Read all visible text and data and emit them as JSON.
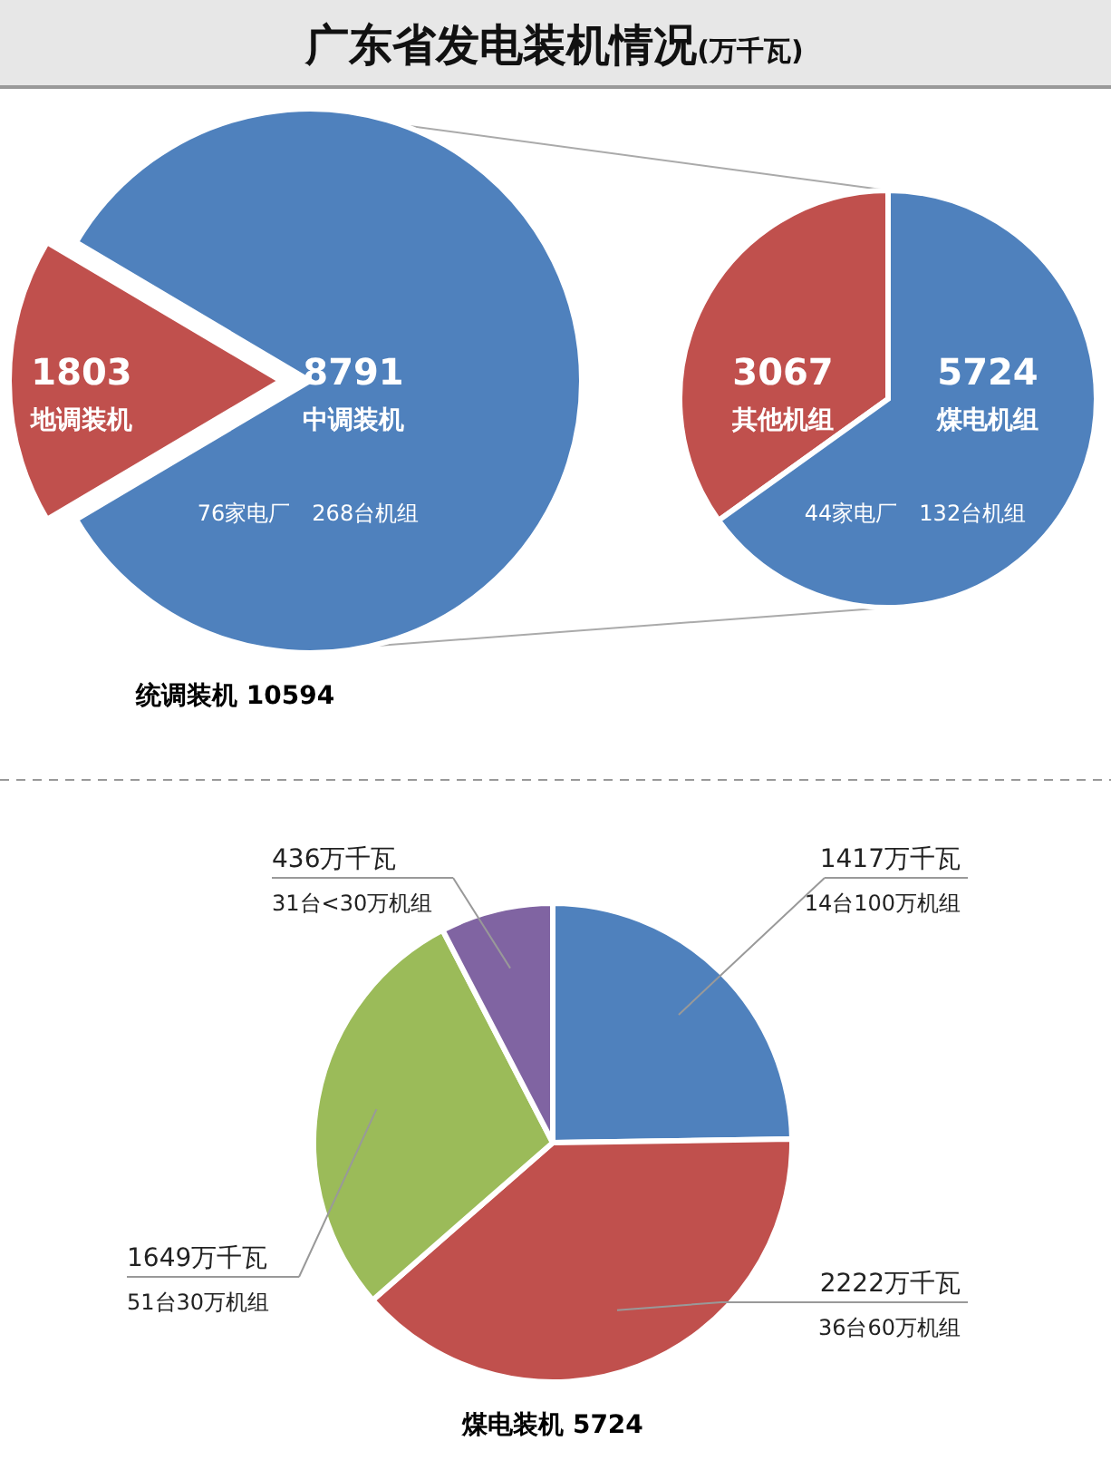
{
  "chart_data": [
    {
      "type": "pie",
      "title": "广东省发电装机情况",
      "subtitle": "(万千瓦)",
      "categories": [
        "地调装机",
        "中调装机"
      ],
      "values": [
        1803,
        8791
      ],
      "colors": [
        "#c0504d",
        "#4f81bd"
      ],
      "data_labels": true,
      "annotations": [
        "76家电厂　268台机组",
        "统调装机  10594"
      ]
    },
    {
      "type": "pie",
      "categories": [
        "其他机组",
        "煤电机组"
      ],
      "values": [
        3067,
        5724
      ],
      "colors": [
        "#c0504d",
        "#4f81bd"
      ],
      "data_labels": true,
      "annotations": [
        "44家电厂　132台机组"
      ]
    },
    {
      "type": "pie",
      "categories": [
        "14台100万机组",
        "36台60万机组",
        "51台30万机组",
        "31台<30万机组"
      ],
      "values": [
        1417,
        2222,
        1649,
        436
      ],
      "colors": [
        "#4f81bd",
        "#c0504d",
        "#9bbb59",
        "#8064a2"
      ],
      "value_labels": [
        "1417万千瓦",
        "2222万千瓦",
        "1649万千瓦",
        "436万千瓦"
      ],
      "annotations": [
        "煤电装机  5724"
      ]
    }
  ]
}
